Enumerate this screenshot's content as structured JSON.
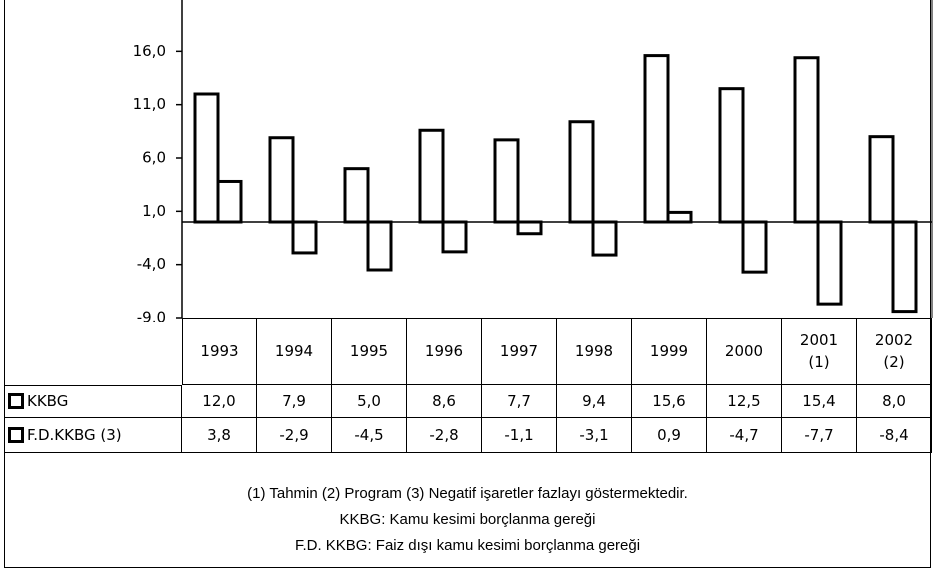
{
  "chart_data": {
    "type": "bar",
    "categories": [
      "1993",
      "1994",
      "1995",
      "1996",
      "1997",
      "1998",
      "1999",
      "2000",
      "2001\n(1)",
      "2002\n(2)"
    ],
    "series": [
      {
        "name": "KKBG",
        "color": "#ffffff",
        "edgecolor": "#000000",
        "values": [
          12.0,
          7.9,
          5.0,
          8.6,
          7.7,
          9.4,
          15.6,
          12.5,
          15.4,
          8.0
        ],
        "value_labels": [
          "12,0",
          "7,9",
          "5,0",
          "8,6",
          "7,7",
          "9,4",
          "15,6",
          "12,5",
          "15,4",
          "8,0"
        ]
      },
      {
        "name": "F.D.KKBG (3)",
        "color": "#ffffff",
        "edgecolor": "#000000",
        "values": [
          3.8,
          -2.9,
          -4.5,
          -2.8,
          -1.1,
          -3.1,
          0.9,
          -4.7,
          -7.7,
          -8.4
        ],
        "value_labels": [
          "3,8",
          "-2,9",
          "-4,5",
          "-2,8",
          "-1,1",
          "-3,1",
          "0,9",
          "-4,7",
          "-7,7",
          "-8,4"
        ]
      }
    ],
    "ylim": [
      -9,
      21
    ],
    "yticks": [
      {
        "value": -9,
        "label": "-9,0"
      },
      {
        "value": -4,
        "label": "-4,0"
      },
      {
        "value": 1,
        "label": "1,0"
      },
      {
        "value": 6,
        "label": "6,0"
      },
      {
        "value": 11,
        "label": "11,0"
      },
      {
        "value": 16,
        "label": "16,0"
      }
    ],
    "grid": false,
    "notes": [
      "(1) Tahmin  (2) Program  (3) Negatif işaretler fazlayı göstermektedir.",
      "KKBG: Kamu kesimi borçlanma gereği",
      "F.D. KKBG: Faiz dışı kamu kesimi borçlanma gereği"
    ]
  }
}
